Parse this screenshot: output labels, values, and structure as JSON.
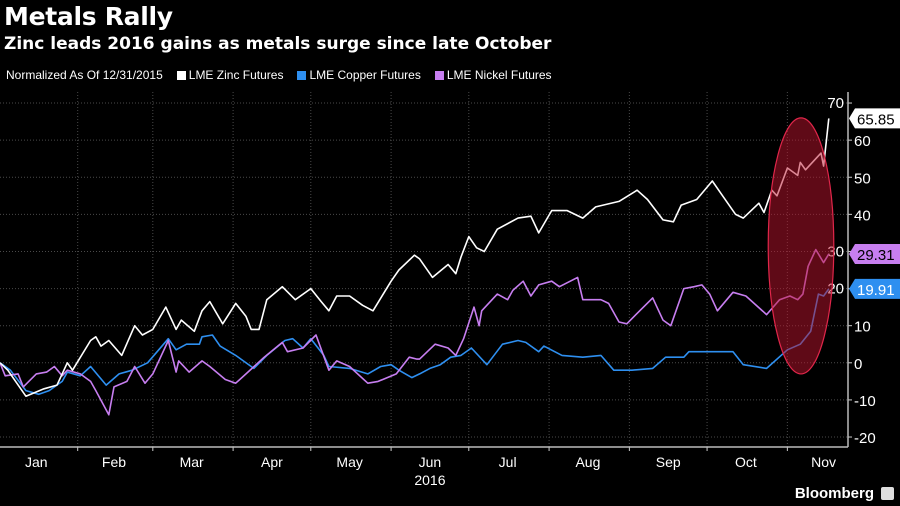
{
  "title": "Metals Rally",
  "subtitle": "Zinc leads 2016 gains as metals surge since late October",
  "brand": "Bloomberg",
  "chart_data": {
    "type": "line",
    "title": "Metals Rally",
    "subtitle": "Zinc leads 2016 gains as metals surge since late October",
    "note": "Normalized As Of 12/31/2015",
    "x_unit": "day of 2016",
    "xlabel": "2016",
    "ylabel": "",
    "ylim": [
      -20,
      70
    ],
    "yticks": [
      -20,
      -10,
      0,
      10,
      20,
      30,
      40,
      50,
      60,
      70
    ],
    "month_labels": [
      "Jan",
      "Feb",
      "Mar",
      "Apr",
      "May",
      "Jun",
      "Jul",
      "Aug",
      "Sep",
      "Oct",
      "Nov"
    ],
    "month_mid_days": [
      16,
      46,
      76,
      107,
      137,
      168,
      198,
      229,
      260,
      290,
      320
    ],
    "month_start_days": [
      32,
      61,
      92,
      122,
      153,
      183,
      214,
      245,
      275,
      306
    ],
    "grid": true,
    "legend_position": "top-left",
    "highlight": {
      "shape": "ellipse",
      "from_day": 299,
      "to_day": 322,
      "ylim": [
        -3,
        66
      ]
    },
    "series": [
      {
        "name": "LME Zinc Futures",
        "color": "#ffffff",
        "last_label": "65.85",
        "days": [
          2,
          5,
          12,
          19,
          24,
          28,
          30,
          37,
          39,
          41,
          44,
          49,
          54,
          57,
          61,
          66,
          70,
          72,
          77,
          80,
          83,
          88,
          93,
          97,
          99,
          102,
          105,
          111,
          116,
          122,
          126,
          129,
          132,
          137,
          142,
          146,
          153,
          156,
          162,
          164,
          169,
          175,
          178,
          180,
          183,
          186,
          189,
          194,
          202,
          207,
          210,
          215,
          221,
          227,
          232,
          241,
          248,
          252,
          258,
          262,
          265,
          271,
          277,
          281,
          286,
          289,
          295,
          297,
          300,
          302,
          306,
          310,
          311,
          313,
          319,
          320,
          322
        ],
        "values": [
          0,
          -2,
          -9,
          -7,
          -6,
          0,
          -2,
          6,
          7,
          4.5,
          6,
          2,
          10,
          7.5,
          9,
          15,
          9,
          11.5,
          8.5,
          14,
          16.5,
          10.5,
          16,
          12.5,
          9,
          9,
          17,
          20.5,
          17,
          20,
          16.5,
          14,
          18,
          18,
          15.5,
          14,
          22,
          25,
          29,
          28,
          23,
          26.5,
          24,
          28.5,
          34,
          31,
          30,
          36,
          39,
          39.5,
          35,
          41,
          41,
          39,
          42,
          43.5,
          46.5,
          44,
          38.5,
          38,
          42.5,
          44,
          49,
          45,
          40,
          39,
          43,
          40.5,
          46.5,
          45,
          52.5,
          50.5,
          54,
          52,
          56.5,
          53,
          65.85
        ]
      },
      {
        "name": "LME Copper Futures",
        "color": "#2e8ff0",
        "last_label": "19.91",
        "days": [
          2,
          6,
          12,
          17,
          21,
          26,
          28,
          33,
          37,
          43,
          48,
          53,
          59,
          67,
          70,
          74,
          79,
          80,
          84,
          87,
          93,
          100,
          105,
          112,
          115,
          119,
          122,
          127,
          129,
          137,
          144,
          149,
          153,
          156,
          161,
          164,
          168,
          172,
          176,
          180,
          184,
          190,
          196,
          202,
          205,
          210,
          212,
          219,
          227,
          234,
          239,
          246,
          254,
          259,
          266,
          268,
          276,
          285,
          289,
          298,
          306,
          311,
          315,
          318,
          320,
          322
        ],
        "values": [
          0,
          -2,
          -7.5,
          -8.5,
          -7.5,
          -5,
          -2.5,
          -3.5,
          -1,
          -6,
          -3,
          -2,
          0,
          6.5,
          3.5,
          5,
          5,
          7,
          7.5,
          4.5,
          2,
          -1.5,
          2,
          6,
          6.5,
          4,
          6.5,
          2,
          -1,
          -1.5,
          -3,
          -1,
          -0.5,
          -2,
          -4,
          -3,
          -1.5,
          -0.5,
          1.5,
          2,
          4,
          -0.5,
          5,
          6,
          5.5,
          3,
          4.5,
          2,
          1.5,
          2,
          -2,
          -2,
          -1.5,
          1.5,
          1.5,
          3,
          3,
          3,
          -0.5,
          -1.5,
          3.5,
          5,
          8.5,
          18.5,
          18,
          19.91
        ]
      },
      {
        "name": "LME Nickel Futures",
        "color": "#c77ef0",
        "last_label": "29.31",
        "days": [
          2,
          4,
          9,
          11,
          16,
          20,
          23,
          26,
          28,
          33,
          37,
          39,
          44,
          46,
          51,
          54,
          58,
          61,
          67,
          70,
          71,
          75,
          80,
          83,
          89,
          93,
          97,
          104,
          111,
          113,
          119,
          124,
          129,
          132,
          137,
          144,
          148,
          155,
          160,
          163,
          164,
          170,
          175,
          178,
          181,
          185,
          187,
          188,
          194,
          198,
          200,
          204,
          207,
          210,
          215,
          218,
          225,
          227,
          234,
          237,
          241,
          244,
          249,
          254,
          258,
          261,
          266,
          270,
          273,
          276,
          279,
          285,
          290,
          298,
          303,
          307,
          310,
          312,
          314,
          317,
          320,
          322
        ],
        "values": [
          0,
          -3.5,
          -3,
          -6.5,
          -3,
          -2.5,
          -1,
          -3.5,
          -2,
          -3,
          -5,
          -7.5,
          -14,
          -6.5,
          -5,
          -1,
          -5.5,
          -3,
          6,
          -2.5,
          0.5,
          -2.5,
          0.5,
          -1,
          -4.5,
          -5.5,
          -3,
          1.5,
          5.5,
          3,
          4,
          7.5,
          -2,
          0.5,
          -1,
          -5.5,
          -5,
          -3,
          1.5,
          1,
          1,
          5,
          4,
          2,
          6.5,
          15,
          10,
          14,
          18.5,
          17,
          19.5,
          22,
          18,
          21,
          22,
          20.5,
          23,
          17,
          17,
          16,
          11,
          10.5,
          14,
          17.5,
          11.5,
          10,
          20,
          20.5,
          21,
          18.5,
          14,
          19,
          18,
          13,
          17,
          18,
          17,
          18.5,
          26,
          30.5,
          27,
          29.31
        ]
      }
    ]
  }
}
